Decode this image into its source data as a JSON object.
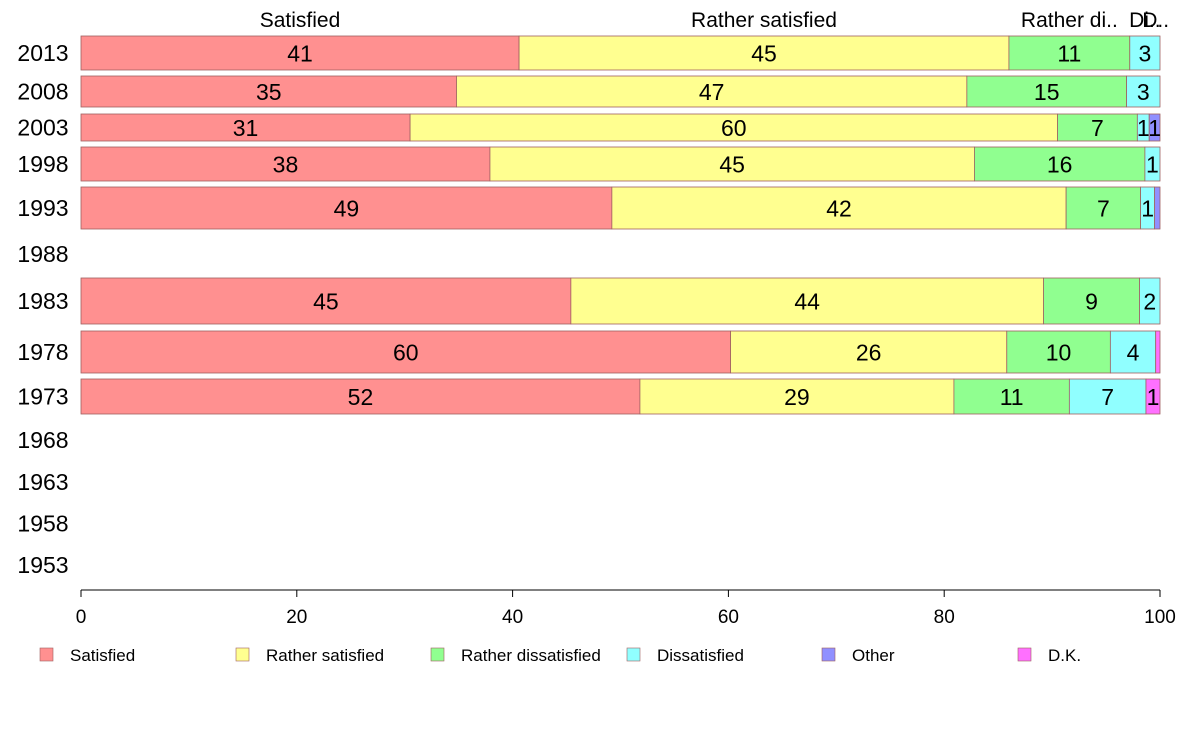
{
  "chart_data": {
    "type": "bar",
    "orientation": "horizontal",
    "stacked": true,
    "categories": [
      "2013",
      "2008",
      "2003",
      "1998",
      "1993",
      "1988",
      "1983",
      "1978",
      "1973",
      "1968",
      "1963",
      "1958",
      "1953"
    ],
    "series": [
      {
        "name": "Satisfied",
        "color": "#ff9090",
        "values": [
          40.6,
          34.8,
          30.5,
          37.9,
          49.2,
          null,
          45.4,
          60.2,
          51.8,
          null,
          null,
          null,
          null
        ],
        "labels": [
          "41",
          "35",
          "31",
          "38",
          "49",
          "",
          "45",
          "60",
          "52",
          "",
          "",
          "",
          ""
        ]
      },
      {
        "name": "Rather satisfied",
        "color": "#ffff90",
        "values": [
          45.4,
          47.3,
          60.0,
          44.9,
          42.1,
          null,
          43.8,
          25.6,
          29.1,
          null,
          null,
          null,
          null
        ],
        "labels": [
          "45",
          "47",
          "60",
          "45",
          "42",
          "",
          "44",
          "26",
          "29",
          "",
          "",
          "",
          ""
        ]
      },
      {
        "name": "Rather dissatisfied",
        "color": "#90ff90",
        "values": [
          11.2,
          14.8,
          7.4,
          15.8,
          6.9,
          null,
          8.9,
          9.6,
          10.7,
          null,
          null,
          null,
          null
        ],
        "labels": [
          "11",
          "15",
          "7",
          "16",
          "7",
          "",
          "9",
          "10",
          "11",
          "",
          "",
          "",
          ""
        ]
      },
      {
        "name": "Dissatisfied",
        "color": "#90ffff",
        "values": [
          2.8,
          3.1,
          1.1,
          1.4,
          1.3,
          null,
          1.9,
          4.2,
          7.1,
          null,
          null,
          null,
          null
        ],
        "labels": [
          "3",
          "3",
          "1",
          "1",
          "1",
          "",
          "2",
          "4",
          "7",
          "",
          "",
          "",
          ""
        ]
      },
      {
        "name": "Other",
        "color": "#9090ff",
        "values": [
          0,
          0,
          1.0,
          0,
          0.5,
          null,
          0,
          0,
          0,
          null,
          null,
          null,
          null
        ],
        "labels": [
          "",
          "",
          "1",
          "",
          "",
          "",
          "",
          "",
          "",
          "",
          "",
          "",
          ""
        ]
      },
      {
        "name": "D.K.",
        "color": "#ff70ff",
        "values": [
          0,
          0,
          0,
          0,
          0,
          null,
          0,
          0.4,
          1.3,
          null,
          null,
          null,
          null
        ],
        "labels": [
          "",
          "",
          "",
          "",
          "",
          "",
          "",
          "",
          "1",
          "",
          "",
          "",
          ""
        ]
      }
    ],
    "top_labels": [
      {
        "text": "Satisfied",
        "value": 20.3
      },
      {
        "text": "Rather satisfied",
        "value": 63.3
      },
      {
        "text": "Rather di..",
        "value": 91.6
      },
      {
        "text": "Di..",
        "value": 98.6
      },
      {
        "text": "D..",
        "value": 99.6
      }
    ],
    "xlim": [
      0,
      100
    ],
    "xticks": [
      0,
      20,
      40,
      60,
      80,
      100
    ],
    "grid": false,
    "legend_position": "bottom"
  }
}
